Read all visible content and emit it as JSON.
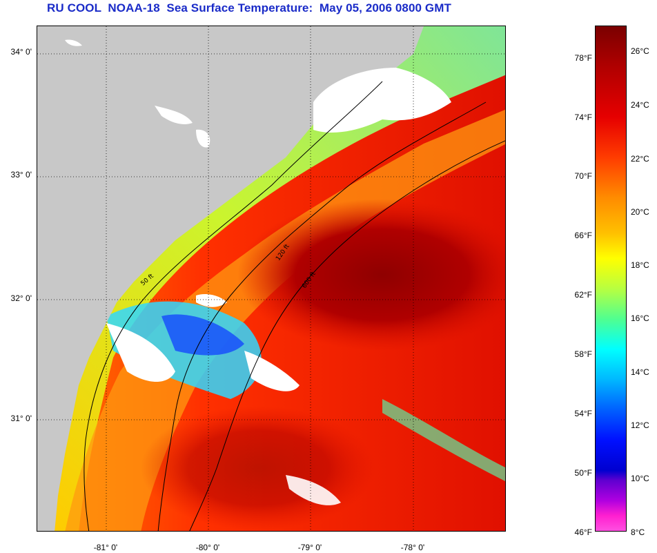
{
  "title": "RU COOL  NOAA-18  Sea Surface Temperature:  May 05, 2006 0800 GMT",
  "latitude_labels": [
    "34° 0'",
    "33° 0'",
    "32° 0'",
    "31° 0'"
  ],
  "longitude_labels": [
    "-81° 0'",
    "-80° 0'",
    "-79° 0'",
    "-78° 0'"
  ],
  "colorbar": {
    "fahrenheit_labels": [
      "78°F",
      "74°F",
      "70°F",
      "66°F",
      "62°F",
      "58°F",
      "54°F",
      "50°F",
      "46°F"
    ],
    "celsius_labels": [
      "26°C",
      "24°C",
      "22°C",
      "20°C",
      "18°C",
      "16°C",
      "14°C",
      "12°C",
      "10°C",
      "8°C"
    ],
    "range_celsius": [
      8,
      27
    ]
  },
  "contours": {
    "depth_labels": [
      "50 ft",
      "120 ft",
      "600 ft"
    ]
  },
  "colors": {
    "title": "#1a2bc8",
    "land": "#c8c8c8",
    "cloud": "#ffffff",
    "warm": "#e01a00",
    "hot": "#9a0000"
  }
}
